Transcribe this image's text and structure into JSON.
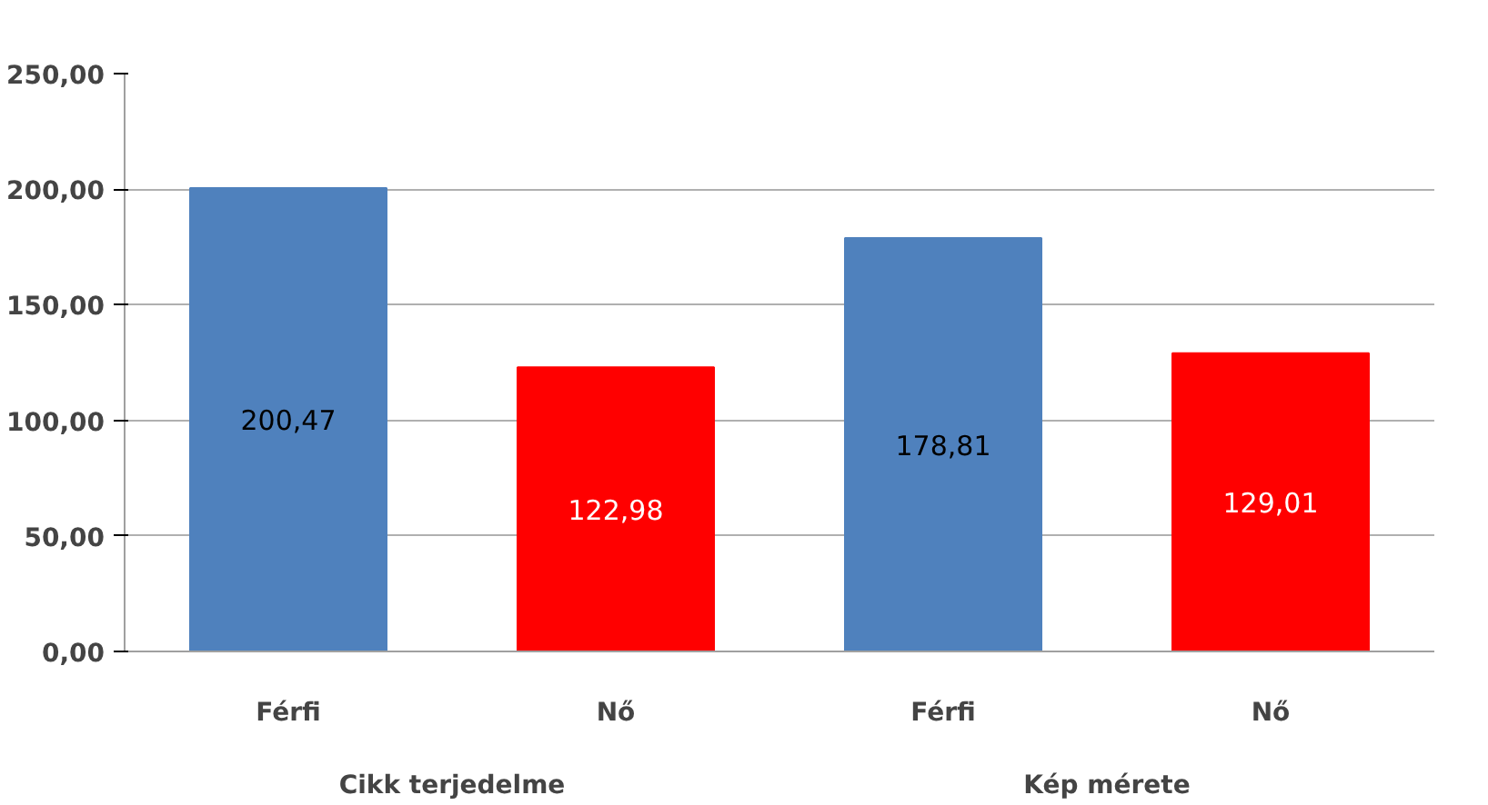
{
  "chart_data": {
    "type": "bar",
    "categories": [
      "Férfi",
      "Nő",
      "Férfi",
      "Nő"
    ],
    "values": [
      200.47,
      122.98,
      178.81,
      129.01
    ],
    "colors": [
      "#4f81bd",
      "#ff0000",
      "#4f81bd",
      "#ff0000"
    ],
    "value_labels": [
      "200,47",
      "122,98",
      "178,81",
      "129,01"
    ],
    "ylim": [
      0,
      250
    ],
    "yticks": [
      {
        "value": 0,
        "label": "0,00"
      },
      {
        "value": 50,
        "label": "50,00"
      },
      {
        "value": 100,
        "label": "100,00"
      },
      {
        "value": 150,
        "label": "150,00"
      },
      {
        "value": 200,
        "label": "200,00"
      },
      {
        "value": 250,
        "label": "250,00"
      }
    ],
    "grid": "y",
    "annotations": [
      "Cikk terjedelme",
      "Kép mérete"
    ]
  }
}
